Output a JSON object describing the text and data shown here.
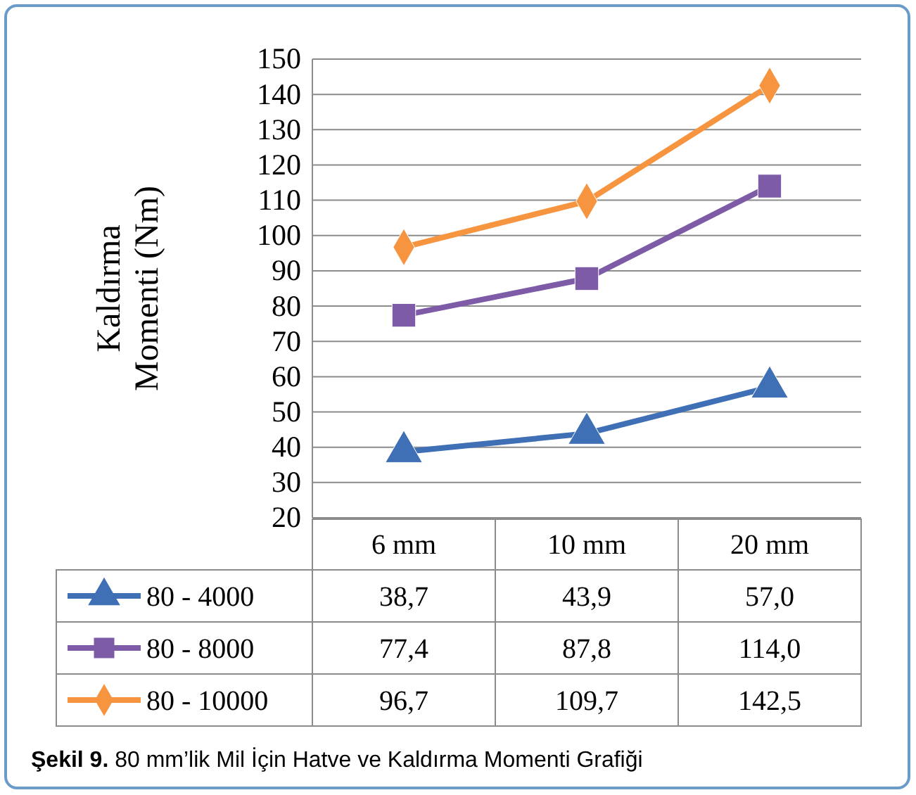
{
  "chart_data": {
    "type": "line",
    "ylabel": "Kaldırma Momenti (Nm)",
    "categories": [
      "6 mm",
      "10 mm",
      "20 mm"
    ],
    "ylim": [
      20,
      150
    ],
    "yticks": [
      20,
      30,
      40,
      50,
      60,
      70,
      80,
      90,
      100,
      110,
      120,
      130,
      140,
      150
    ],
    "grid": "y",
    "legend": "bottom",
    "line_style": "solid",
    "series": [
      {
        "name": "80 - 4000",
        "color": "#3f6fb5",
        "marker": "triangle",
        "values": [
          38.7,
          43.9,
          57.0
        ],
        "value_labels": [
          "38,7",
          "43,9",
          "57,0"
        ]
      },
      {
        "name": "80 - 8000",
        "color": "#7d5ba6",
        "marker": "square",
        "values": [
          77.4,
          87.8,
          114.0
        ],
        "value_labels": [
          "77,4",
          "87,8",
          "114,0"
        ]
      },
      {
        "name": "80 - 10000",
        "color": "#f7943f",
        "marker": "diamond",
        "values": [
          96.7,
          109.7,
          142.5
        ],
        "value_labels": [
          "96,7",
          "109,7",
          "142,5"
        ]
      }
    ],
    "annotations": [
      "Şekil 9. 80 mm’lik Mil İçin Hatve ve Kaldırma Momenti Grafiği"
    ]
  }
}
